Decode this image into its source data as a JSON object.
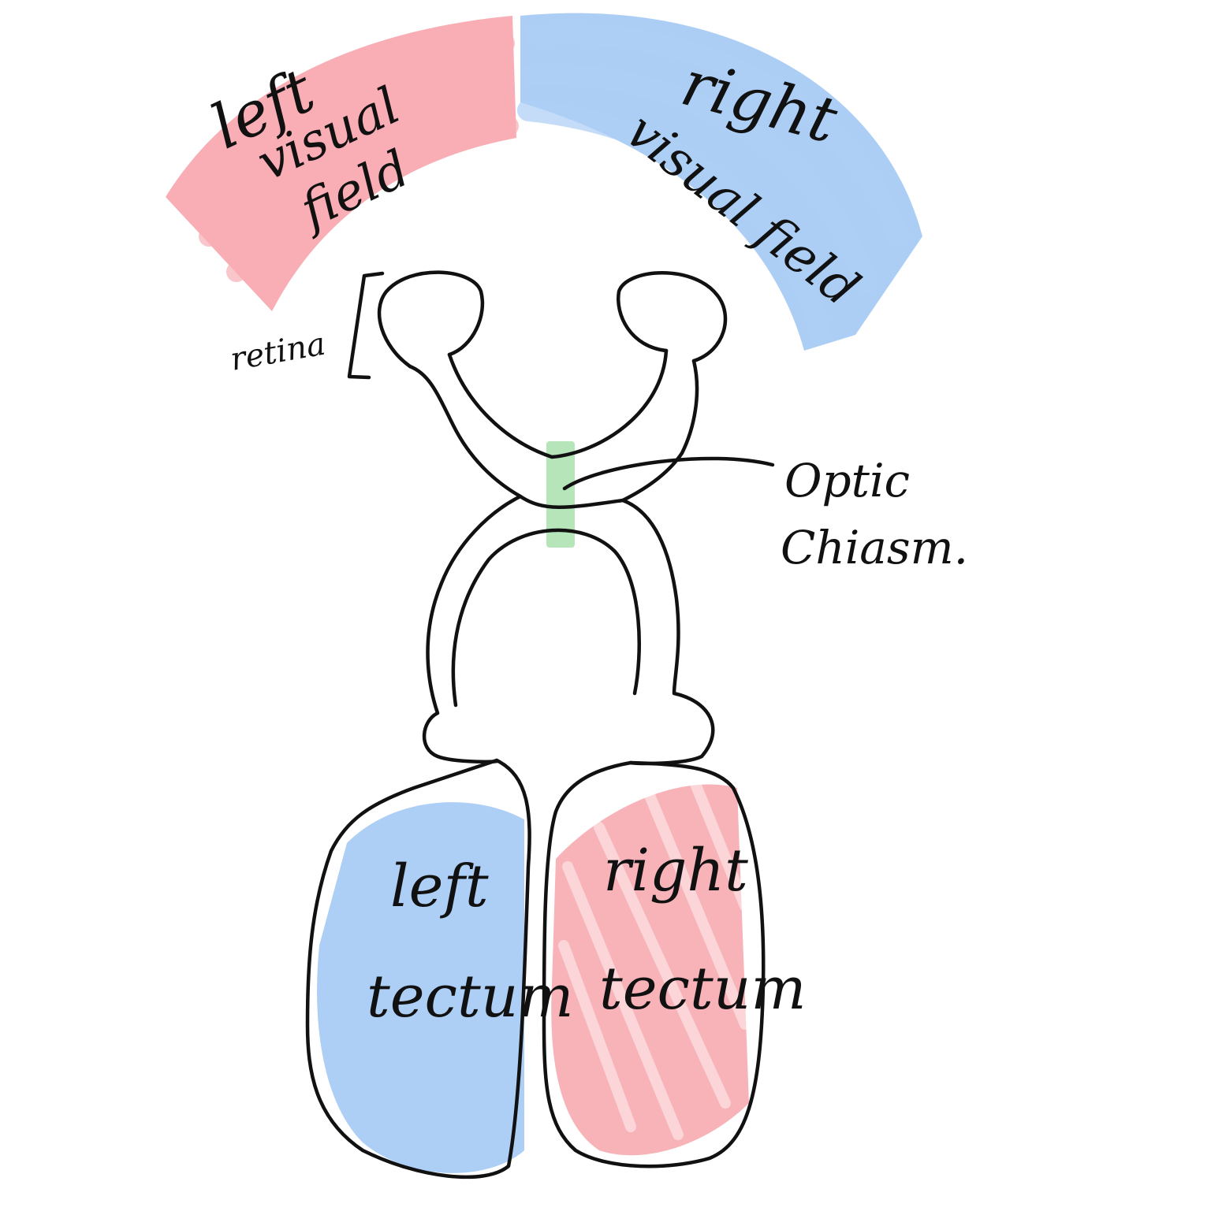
{
  "labels": {
    "left_visual_field": [
      "left",
      "visual",
      "field"
    ],
    "right_visual_field": [
      "right",
      "visual field"
    ],
    "retina": "retina",
    "optic_chiasm": [
      "Optic",
      "Chiasm."
    ],
    "left_tectum": [
      "left",
      "tectum"
    ],
    "right_tectum": [
      "right",
      "tectum"
    ]
  },
  "colors": {
    "left_field": "#f7a1a8",
    "right_field": "#9fc6f3",
    "chiasm_marker": "#a9e0ae",
    "outline": "#111111",
    "background": "#ffffff"
  }
}
